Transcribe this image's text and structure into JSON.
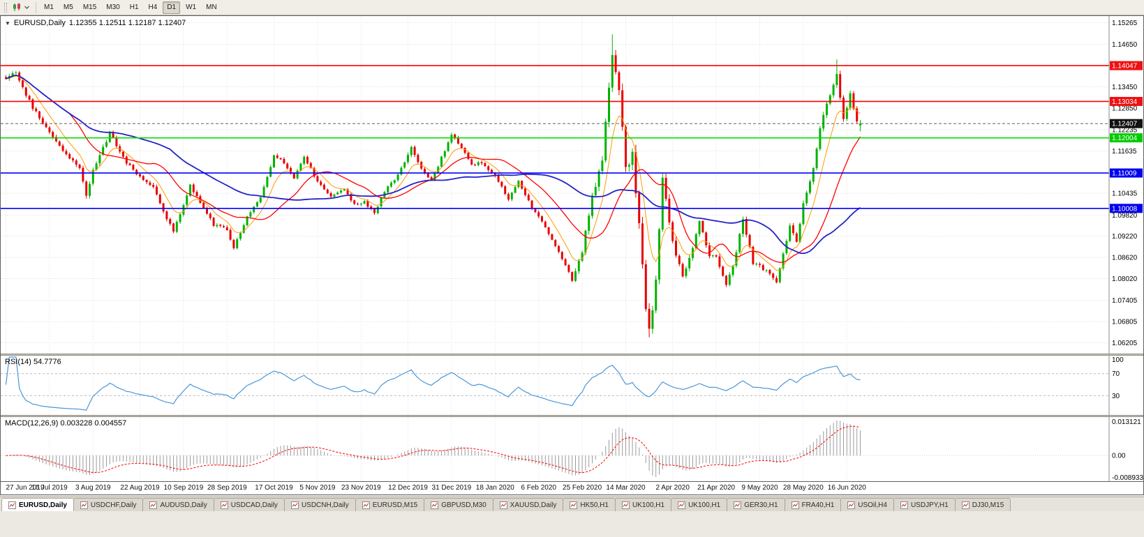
{
  "toolbar": {
    "timeframes": [
      "M1",
      "M5",
      "M15",
      "M30",
      "H1",
      "H4",
      "D1",
      "W1",
      "MN"
    ],
    "active_timeframe": "D1"
  },
  "chart": {
    "dropdown_glyph": "▼",
    "title": "EURUSD,Daily",
    "ohlc": "1.12355 1.12511 1.12187 1.12407"
  },
  "rsi_panel": {
    "label": "RSI(14) 54.7776",
    "axis_top_label": "100",
    "level_high": 70,
    "level_low": 30,
    "line_color": "#4a96d9"
  },
  "macd_panel": {
    "label": "MACD(12,26,9) 0.003228 0.004557",
    "axis_top": "0.013121",
    "axis_zero": "0.00",
    "axis_bottom": "-0.008933",
    "histogram_color": "#9b9b9b",
    "signal_color": "#ff0000"
  },
  "price_axis": {
    "plain_ticks": [
      1.15265,
      1.1465,
      1.1345,
      1.1285,
      1.12235,
      1.11635,
      1.10435,
      1.0982,
      1.0922,
      1.0862,
      1.0802,
      1.07405,
      1.06805,
      1.06205
    ],
    "boxed_ticks": [
      {
        "value": 1.14047,
        "bg": "#ee1111",
        "fg": "#ffffff"
      },
      {
        "value": 1.13034,
        "bg": "#ee1111",
        "fg": "#ffffff"
      },
      {
        "value": 1.12407,
        "bg": "#111111",
        "fg": "#ffffff"
      },
      {
        "value": 1.12004,
        "bg": "#00cc00",
        "fg": "#ffffff"
      },
      {
        "value": 1.11009,
        "bg": "#0000ee",
        "fg": "#ffffff"
      },
      {
        "value": 1.10008,
        "bg": "#0000ee",
        "fg": "#ffffff"
      }
    ]
  },
  "hlines": [
    {
      "price": 1.14047,
      "color": "#ff0000"
    },
    {
      "price": 1.13034,
      "color": "#ff0000"
    },
    {
      "price": 1.12004,
      "color": "#00dd00"
    },
    {
      "price": 1.11009,
      "color": "#0000ff"
    },
    {
      "price": 1.10008,
      "color": "#0000ff"
    }
  ],
  "current_price_line": {
    "price": 1.12407,
    "color": "#606060"
  },
  "chart_data": {
    "type": "candlestick",
    "symbol": "EURUSD",
    "timeframe": "Daily",
    "visible_start": "27 Jun 2019",
    "visible_end": "16 Jun 2020",
    "price_min": 1.059,
    "price_max": 1.1545,
    "n_candles": 256,
    "up_color": "#00b300",
    "down_color": "#e80000",
    "close_anchors": [
      [
        0,
        1.1372,
        9
      ],
      [
        3,
        1.1383,
        8
      ],
      [
        8,
        1.1285,
        8
      ],
      [
        13,
        1.1218,
        7
      ],
      [
        18,
        1.115,
        7
      ],
      [
        22,
        1.1115,
        8
      ],
      [
        24,
        1.104,
        10
      ],
      [
        26,
        1.1105,
        9
      ],
      [
        31,
        1.1215,
        8
      ],
      [
        36,
        1.113,
        7
      ],
      [
        40,
        1.109,
        7
      ],
      [
        44,
        1.106,
        7
      ],
      [
        47,
        1.099,
        7
      ],
      [
        50,
        1.0935,
        7
      ],
      [
        55,
        1.1065,
        7
      ],
      [
        58,
        1.1015,
        7
      ],
      [
        62,
        1.0955,
        7
      ],
      [
        66,
        1.094,
        7
      ],
      [
        68,
        1.0888,
        8
      ],
      [
        72,
        1.0975,
        7
      ],
      [
        76,
        1.103,
        7
      ],
      [
        80,
        1.115,
        7
      ],
      [
        83,
        1.113,
        6
      ],
      [
        86,
        1.1085,
        6
      ],
      [
        89,
        1.115,
        6
      ],
      [
        93,
        1.1075,
        6
      ],
      [
        97,
        1.1035,
        6
      ],
      [
        101,
        1.1055,
        6
      ],
      [
        104,
        1.1012,
        6
      ],
      [
        107,
        1.102,
        6
      ],
      [
        110,
        1.0985,
        6
      ],
      [
        113,
        1.105,
        6
      ],
      [
        116,
        1.108,
        6
      ],
      [
        121,
        1.117,
        8
      ],
      [
        124,
        1.1115,
        6
      ],
      [
        127,
        1.1078,
        6
      ],
      [
        133,
        1.121,
        7
      ],
      [
        136,
        1.117,
        7
      ],
      [
        139,
        1.1122,
        6
      ],
      [
        142,
        1.1132,
        6
      ],
      [
        146,
        1.1092,
        6
      ],
      [
        150,
        1.1028,
        6
      ],
      [
        153,
        1.1078,
        6
      ],
      [
        157,
        1.1002,
        6
      ],
      [
        159,
        1.098,
        6
      ],
      [
        163,
        1.0912,
        6
      ],
      [
        167,
        1.0842,
        6
      ],
      [
        169,
        1.08,
        8
      ],
      [
        172,
        1.088,
        12
      ],
      [
        175,
        1.1032,
        15
      ],
      [
        178,
        1.1135,
        16
      ],
      [
        181,
        1.1442,
        24
      ],
      [
        183,
        1.133,
        20
      ],
      [
        185,
        1.111,
        24
      ],
      [
        187,
        1.115,
        20
      ],
      [
        189,
        1.0952,
        24
      ],
      [
        191,
        1.0712,
        22
      ],
      [
        192,
        1.0655,
        18
      ],
      [
        194,
        1.079,
        18
      ],
      [
        196,
        1.1082,
        16
      ],
      [
        199,
        1.0905,
        14
      ],
      [
        202,
        1.0802,
        12
      ],
      [
        205,
        1.0892,
        10
      ],
      [
        207,
        1.0965,
        10
      ],
      [
        210,
        1.0865,
        9
      ],
      [
        212,
        1.0862,
        9
      ],
      [
        215,
        1.0782,
        9
      ],
      [
        218,
        1.0872,
        9
      ],
      [
        220,
        1.0975,
        10
      ],
      [
        223,
        1.0845,
        9
      ],
      [
        225,
        1.084,
        8
      ],
      [
        228,
        1.0812,
        8
      ],
      [
        230,
        1.0792,
        8
      ],
      [
        234,
        1.0952,
        9
      ],
      [
        236,
        1.0902,
        8
      ],
      [
        238,
        1.1012,
        9
      ],
      [
        241,
        1.1112,
        10
      ],
      [
        243,
        1.1232,
        11
      ],
      [
        245,
        1.1292,
        10
      ],
      [
        248,
        1.1375,
        11
      ],
      [
        250,
        1.1258,
        11
      ],
      [
        252,
        1.1322,
        10
      ],
      [
        254,
        1.1242,
        9
      ],
      [
        255,
        1.12407,
        8
      ]
    ],
    "spike_highs": [
      [
        181,
        1.1493
      ],
      [
        248,
        1.1422
      ]
    ],
    "spike_lows": [
      [
        192,
        1.0636
      ]
    ],
    "last_candle": {
      "open": 1.12355,
      "high": 1.12511,
      "low": 1.12187,
      "close": 1.12407
    },
    "moving_averages": [
      {
        "type": "ema",
        "period": 8,
        "color": "#ff9900",
        "width": 1
      },
      {
        "type": "sma",
        "period": 20,
        "color": "#ff0000",
        "width": 1.3
      },
      {
        "type": "sma",
        "period": 50,
        "color": "#2323c8",
        "width": 1.8
      }
    ],
    "rsi": {
      "period": 14,
      "last_value": 54.7776
    },
    "macd": {
      "fast": 12,
      "slow": 26,
      "signal": 9,
      "main_value": 0.003228,
      "signal_value": 0.004557
    },
    "date_labels": [
      [
        0,
        "27 Jun 2019"
      ],
      [
        13,
        "16 Jul 2019"
      ],
      [
        26,
        "3 Aug 2019"
      ],
      [
        40,
        "22 Aug 2019"
      ],
      [
        53,
        "10 Sep 2019"
      ],
      [
        66,
        "28 Sep 2019"
      ],
      [
        80,
        "17 Oct 2019"
      ],
      [
        93,
        "5 Nov 2019"
      ],
      [
        106,
        "23 Nov 2019"
      ],
      [
        120,
        "12 Dec 2019"
      ],
      [
        133,
        "31 Dec 2019"
      ],
      [
        146,
        "18 Jan 2020"
      ],
      [
        159,
        "6 Feb 2020"
      ],
      [
        172,
        "25 Feb 2020"
      ],
      [
        185,
        "14 Mar 2020"
      ],
      [
        199,
        "2 Apr 2020"
      ],
      [
        212,
        "21 Apr 2020"
      ],
      [
        225,
        "9 May 2020"
      ],
      [
        238,
        "28 May 2020"
      ],
      [
        251,
        "16 Jun 2020"
      ]
    ]
  },
  "tabs": [
    {
      "label": "EURUSD,Daily",
      "active": true
    },
    {
      "label": "USDCHF,Daily",
      "active": false
    },
    {
      "label": "AUDUSD,Daily",
      "active": false
    },
    {
      "label": "USDCAD,Daily",
      "active": false
    },
    {
      "label": "USDCNH,Daily",
      "active": false
    },
    {
      "label": "EURUSD,M15",
      "active": false
    },
    {
      "label": "GBPUSD,M30",
      "active": false
    },
    {
      "label": "XAUUSD,Daily",
      "active": false
    },
    {
      "label": "HK50,H1",
      "active": false
    },
    {
      "label": "UK100,H1",
      "active": false
    },
    {
      "label": "UK100,H1",
      "active": false
    },
    {
      "label": "GER30,H1",
      "active": false
    },
    {
      "label": "FRA40,H1",
      "active": false
    },
    {
      "label": "USOil,H4",
      "active": false
    },
    {
      "label": "USDJPY,H1",
      "active": false
    },
    {
      "label": "DJ30,M15",
      "active": false
    }
  ]
}
